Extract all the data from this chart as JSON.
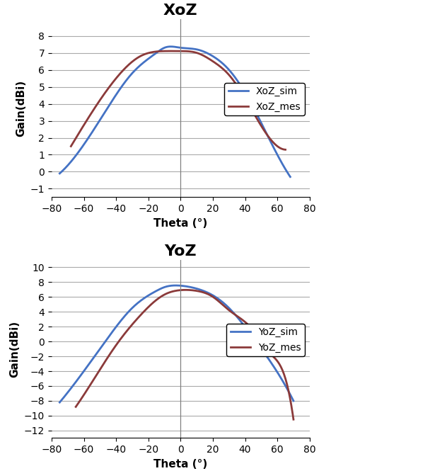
{
  "xoz_title": "XoZ",
  "yoz_title": "YoZ",
  "xlabel": "Theta (°)",
  "ylabel": "Gain(dBi)",
  "blue_color": "#4472C4",
  "red_color": "#8B3A3A",
  "line_width": 2.0,
  "xoz_sim_theta": [
    -75,
    -60,
    -45,
    -30,
    -15,
    -10,
    0,
    10,
    20,
    30,
    45,
    60,
    68
  ],
  "xoz_sim_gain": [
    -0.1,
    1.6,
    3.8,
    5.8,
    7.0,
    7.3,
    7.3,
    7.2,
    6.8,
    6.0,
    3.8,
    1.0,
    -0.3
  ],
  "xoz_mes_theta": [
    -68,
    -55,
    -40,
    -25,
    -10,
    0,
    10,
    20,
    30,
    45,
    55,
    65
  ],
  "xoz_mes_gain": [
    1.5,
    3.5,
    5.5,
    6.8,
    7.1,
    7.1,
    7.0,
    6.5,
    5.7,
    3.5,
    2.0,
    1.3
  ],
  "xoz_xlim": [
    -80,
    80
  ],
  "xoz_ylim": [
    -1.5,
    9
  ],
  "xoz_yticks": [
    -1,
    0,
    1,
    2,
    3,
    4,
    5,
    6,
    7,
    8
  ],
  "xoz_xticks": [
    -80,
    -60,
    -40,
    -20,
    0,
    20,
    40,
    60,
    80
  ],
  "yoz_sim_theta": [
    -75,
    -60,
    -45,
    -30,
    -15,
    -10,
    0,
    10,
    20,
    30,
    45,
    55,
    70
  ],
  "yoz_sim_gain": [
    -8.2,
    -4.0,
    0.5,
    4.5,
    6.8,
    7.3,
    7.5,
    7.1,
    6.2,
    4.5,
    0.5,
    -2.5,
    -8.0
  ],
  "yoz_mes_theta": [
    -65,
    -55,
    -40,
    -25,
    -10,
    0,
    10,
    20,
    30,
    45,
    55,
    65,
    70
  ],
  "yoz_mes_gain": [
    -8.8,
    -5.5,
    -0.5,
    3.5,
    6.3,
    6.9,
    6.8,
    6.0,
    4.2,
    1.5,
    -1.5,
    -5.0,
    -10.5
  ],
  "yoz_xlim": [
    -80,
    80
  ],
  "yoz_ylim": [
    -13,
    11
  ],
  "yoz_yticks": [
    -12,
    -10,
    -8,
    -6,
    -4,
    -2,
    0,
    2,
    4,
    6,
    8,
    10
  ],
  "yoz_xticks": [
    -80,
    -60,
    -40,
    -20,
    0,
    20,
    40,
    60,
    80
  ],
  "legend_xoz": [
    "XoZ_sim",
    "XoZ_mes"
  ],
  "legend_yoz": [
    "YoZ_sim",
    "YoZ_mes"
  ],
  "title_fontsize": 16,
  "axis_label_fontsize": 11,
  "tick_fontsize": 10,
  "legend_fontsize": 10,
  "grid_color": "#aaaaaa",
  "grid_linewidth": 0.8,
  "bg_color": "#ffffff"
}
